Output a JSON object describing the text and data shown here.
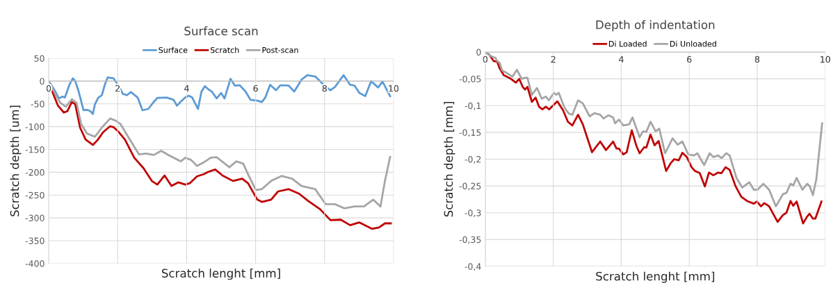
{
  "chart_data": [
    {
      "type": "line",
      "title": "Surface scan",
      "xlabel": "Scratch lenght [mm]",
      "ylabel": "Scratch depth [um]",
      "xlim": [
        0,
        10
      ],
      "xticks": [
        0,
        2,
        4,
        6,
        8,
        10
      ],
      "ylim": [
        -400,
        50
      ],
      "yticks": [
        -400,
        -350,
        -300,
        -250,
        -200,
        -150,
        -100,
        -50,
        0,
        50
      ],
      "grid": true,
      "legend": "top",
      "line_style": "solid",
      "series": [
        {
          "name": "Surface",
          "color": "#5b9bd5",
          "x": [
            0,
            0.17,
            0.3,
            0.4,
            0.47,
            0.6,
            0.7,
            0.77,
            0.87,
            1.01,
            1.11,
            1.21,
            1.28,
            1.34,
            1.44,
            1.54,
            1.64,
            1.71,
            1.88,
            2.01,
            2.15,
            2.27,
            2.38,
            2.58,
            2.72,
            2.89,
            3.02,
            3.15,
            3.42,
            3.62,
            3.72,
            3.83,
            3.96,
            4.06,
            4.16,
            4.33,
            4.43,
            4.53,
            4.63,
            4.73,
            4.87,
            5.0,
            5.1,
            5.27,
            5.4,
            5.54,
            5.71,
            5.85,
            6.05,
            6.18,
            6.28,
            6.42,
            6.59,
            6.72,
            6.96,
            7.12,
            7.33,
            7.5,
            7.73,
            8.0,
            8.17,
            8.3,
            8.55,
            8.74,
            8.87,
            9.01,
            9.18,
            9.35,
            9.55,
            9.68,
            9.9
          ],
          "values": [
            0,
            -20,
            -38,
            -34,
            -36,
            -8,
            6,
            0,
            -23,
            -64,
            -63,
            -66,
            -72,
            -51,
            -36,
            -31,
            -5,
            8,
            6,
            -8,
            -28,
            -31,
            -24,
            -36,
            -64,
            -61,
            -48,
            -37,
            -36,
            -41,
            -54,
            -45,
            -36,
            -32,
            -36,
            -61,
            -23,
            -11,
            -18,
            -23,
            -38,
            -26,
            -38,
            5,
            -10,
            -9,
            -23,
            -41,
            -43,
            -46,
            -36,
            -8,
            -20,
            -9,
            -10,
            -23,
            3,
            13,
            10,
            -10,
            -20,
            -13,
            13,
            -8,
            -10,
            -26,
            -33,
            0,
            -14,
            -1,
            -33
          ]
        },
        {
          "name": "Scratch",
          "color": "#c00000",
          "x": [
            0,
            0.13,
            0.27,
            0.44,
            0.54,
            0.67,
            0.77,
            0.91,
            1.07,
            1.28,
            1.41,
            1.58,
            1.78,
            1.88,
            2.01,
            2.21,
            2.48,
            2.75,
            2.99,
            3.15,
            3.36,
            3.56,
            3.76,
            3.96,
            4.09,
            4.3,
            4.5,
            4.63,
            4.83,
            5.04,
            5.34,
            5.61,
            5.78,
            6.05,
            6.18,
            6.45,
            6.65,
            6.96,
            7.26,
            7.53,
            7.87,
            8.17,
            8.47,
            8.74,
            9.01,
            9.38,
            9.58,
            9.75,
            9.92
          ],
          "values": [
            -1,
            -28,
            -54,
            -69,
            -66,
            -46,
            -51,
            -102,
            -128,
            -140,
            -130,
            -112,
            -99,
            -101,
            -110,
            -128,
            -168,
            -191,
            -219,
            -227,
            -207,
            -230,
            -222,
            -227,
            -224,
            -209,
            -204,
            -199,
            -194,
            -207,
            -219,
            -214,
            -224,
            -260,
            -265,
            -260,
            -242,
            -237,
            -247,
            -263,
            -281,
            -305,
            -304,
            -316,
            -310,
            -324,
            -321,
            -312,
            -312
          ]
        },
        {
          "name": "Post-scan",
          "color": "#a5a5a5",
          "x": [
            0,
            0.17,
            0.34,
            0.5,
            0.67,
            0.81,
            0.94,
            1.11,
            1.34,
            1.54,
            1.78,
            1.95,
            2.08,
            2.35,
            2.62,
            2.82,
            3.05,
            3.26,
            3.49,
            3.83,
            3.96,
            4.13,
            4.3,
            4.5,
            4.7,
            4.87,
            5.24,
            5.44,
            5.64,
            5.81,
            6.01,
            6.18,
            6.45,
            6.75,
            7.06,
            7.33,
            7.73,
            8.03,
            8.3,
            8.57,
            8.87,
            9.14,
            9.41,
            9.62,
            9.75,
            9.9
          ],
          "values": [
            0,
            -26,
            -48,
            -56,
            -40,
            -48,
            -94,
            -115,
            -122,
            -102,
            -82,
            -87,
            -94,
            -128,
            -161,
            -159,
            -162,
            -153,
            -163,
            -176,
            -168,
            -173,
            -186,
            -178,
            -168,
            -167,
            -189,
            -176,
            -181,
            -209,
            -239,
            -237,
            -219,
            -208,
            -214,
            -230,
            -237,
            -270,
            -270,
            -279,
            -275,
            -275,
            -260,
            -275,
            -219,
            -166
          ]
        }
      ]
    },
    {
      "type": "line",
      "title": "Depth of indentation",
      "xlabel": "Scratch lenght [mm]",
      "ylabel": "Scratch depth [mm]",
      "xlim": [
        0,
        10
      ],
      "xticks": [
        0,
        2,
        4,
        6,
        8,
        10
      ],
      "ylim": [
        -0.4,
        0
      ],
      "yticks": [
        {
          "value": -0.4,
          "label": "-0,4"
        },
        {
          "value": -0.35,
          "label": "-0,35"
        },
        {
          "value": -0.3,
          "label": "-0,3"
        },
        {
          "value": -0.25,
          "label": "-0,25"
        },
        {
          "value": -0.2,
          "label": "-0,2"
        },
        {
          "value": -0.15,
          "label": "-0,15"
        },
        {
          "value": -0.1,
          "label": "-0,1"
        },
        {
          "value": -0.05,
          "label": "-0,05"
        },
        0
      ],
      "grid": true,
      "legend": "top",
      "line_style": "solid",
      "series": [
        {
          "name": "Di Loaded",
          "color": "#c00000",
          "x": [
            0,
            0.12,
            0.25,
            0.35,
            0.42,
            0.54,
            0.73,
            0.9,
            1.0,
            1.1,
            1.17,
            1.24,
            1.37,
            1.48,
            1.58,
            1.68,
            1.78,
            1.88,
            2.02,
            2.12,
            2.29,
            2.43,
            2.56,
            2.73,
            2.87,
            3.14,
            3.38,
            3.55,
            3.76,
            3.86,
            3.93,
            4.06,
            4.16,
            4.31,
            4.44,
            4.54,
            4.67,
            4.74,
            4.86,
            4.98,
            5.1,
            5.32,
            5.46,
            5.56,
            5.69,
            5.8,
            5.93,
            6.07,
            6.17,
            6.31,
            6.46,
            6.58,
            6.71,
            6.85,
            6.95,
            7.07,
            7.19,
            7.36,
            7.53,
            7.7,
            7.9,
            7.99,
            8.11,
            8.21,
            8.35,
            8.6,
            8.76,
            8.86,
            8.98,
            9.06,
            9.16,
            9.35,
            9.47,
            9.54,
            9.64,
            9.71,
            9.89
          ],
          "values": [
            0,
            -0.005,
            -0.017,
            -0.018,
            -0.03,
            -0.043,
            -0.049,
            -0.057,
            -0.05,
            -0.065,
            -0.07,
            -0.065,
            -0.093,
            -0.085,
            -0.102,
            -0.107,
            -0.102,
            -0.107,
            -0.098,
            -0.092,
            -0.109,
            -0.13,
            -0.137,
            -0.117,
            -0.135,
            -0.187,
            -0.167,
            -0.183,
            -0.167,
            -0.18,
            -0.18,
            -0.191,
            -0.187,
            -0.146,
            -0.174,
            -0.189,
            -0.178,
            -0.178,
            -0.154,
            -0.174,
            -0.166,
            -0.222,
            -0.207,
            -0.2,
            -0.202,
            -0.188,
            -0.196,
            -0.215,
            -0.222,
            -0.226,
            -0.251,
            -0.225,
            -0.23,
            -0.225,
            -0.226,
            -0.215,
            -0.22,
            -0.25,
            -0.27,
            -0.278,
            -0.283,
            -0.279,
            -0.288,
            -0.282,
            -0.288,
            -0.317,
            -0.304,
            -0.3,
            -0.278,
            -0.287,
            -0.279,
            -0.32,
            -0.307,
            -0.302,
            -0.311,
            -0.311,
            -0.279
          ]
        },
        {
          "name": "Di Unloaded",
          "color": "#a5a5a5",
          "x": [
            0,
            0.15,
            0.3,
            0.35,
            0.42,
            0.49,
            0.63,
            0.8,
            0.93,
            1.07,
            1.17,
            1.24,
            1.37,
            1.52,
            1.66,
            1.78,
            1.87,
            2.02,
            2.09,
            2.16,
            2.33,
            2.46,
            2.56,
            2.73,
            2.87,
            3.07,
            3.21,
            3.38,
            3.48,
            3.62,
            3.76,
            3.82,
            3.93,
            4.06,
            4.23,
            4.33,
            4.54,
            4.64,
            4.74,
            4.86,
            5.01,
            5.12,
            5.29,
            5.51,
            5.66,
            5.8,
            5.97,
            6.14,
            6.24,
            6.44,
            6.6,
            6.71,
            6.85,
            6.95,
            7.09,
            7.19,
            7.39,
            7.56,
            7.77,
            7.9,
            8.01,
            8.18,
            8.35,
            8.55,
            8.76,
            8.86,
            8.98,
            9.06,
            9.16,
            9.33,
            9.47,
            9.54,
            9.64,
            9.74,
            9.91
          ],
          "values": [
            0,
            -0.007,
            -0.011,
            -0.017,
            -0.02,
            -0.034,
            -0.039,
            -0.046,
            -0.033,
            -0.05,
            -0.048,
            -0.048,
            -0.08,
            -0.067,
            -0.087,
            -0.083,
            -0.09,
            -0.076,
            -0.08,
            -0.076,
            -0.104,
            -0.115,
            -0.117,
            -0.09,
            -0.096,
            -0.12,
            -0.114,
            -0.117,
            -0.124,
            -0.118,
            -0.122,
            -0.133,
            -0.126,
            -0.137,
            -0.135,
            -0.122,
            -0.159,
            -0.148,
            -0.149,
            -0.13,
            -0.148,
            -0.143,
            -0.189,
            -0.161,
            -0.173,
            -0.167,
            -0.191,
            -0.193,
            -0.189,
            -0.211,
            -0.189,
            -0.196,
            -0.193,
            -0.198,
            -0.189,
            -0.193,
            -0.235,
            -0.253,
            -0.243,
            -0.257,
            -0.257,
            -0.246,
            -0.257,
            -0.288,
            -0.265,
            -0.263,
            -0.246,
            -0.249,
            -0.235,
            -0.257,
            -0.246,
            -0.25,
            -0.267,
            -0.237,
            -0.133
          ]
        }
      ]
    }
  ]
}
